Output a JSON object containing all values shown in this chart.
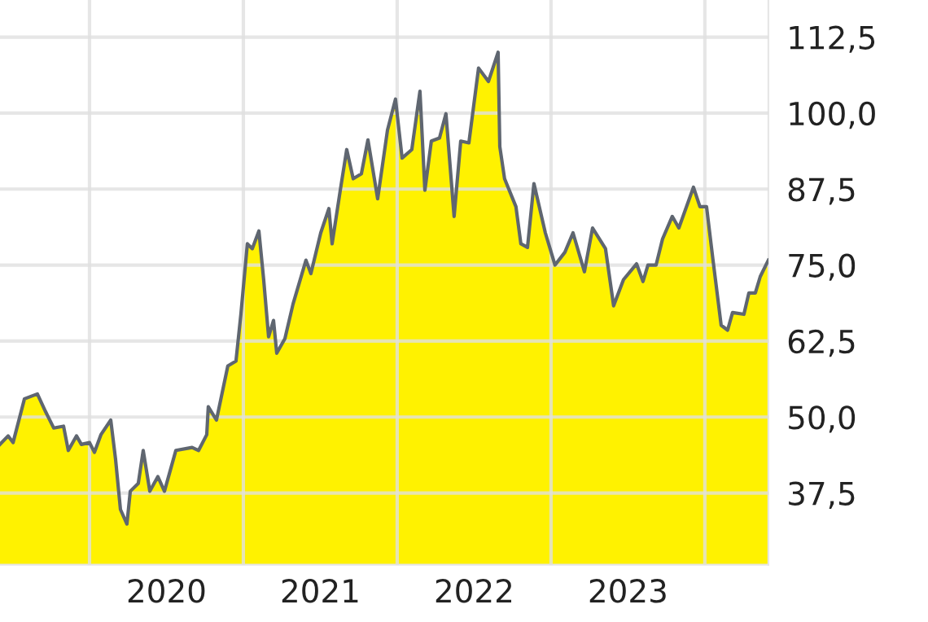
{
  "chart_data": {
    "type": "area",
    "x": [
      2019.418,
      2019.471,
      2019.503,
      2019.577,
      2019.661,
      2019.714,
      2019.767,
      2019.831,
      2019.862,
      2019.915,
      2019.947,
      2020.0,
      2020.032,
      2020.074,
      2020.138,
      2020.169,
      2020.201,
      2020.243,
      2020.265,
      2020.317,
      2020.349,
      2020.392,
      2020.444,
      2020.487,
      2020.561,
      2020.667,
      2020.709,
      2020.762,
      2020.772,
      2020.825,
      2020.899,
      2020.952,
      2020.984,
      2021.026,
      2021.058,
      2021.101,
      2021.132,
      2021.164,
      2021.196,
      2021.217,
      2021.27,
      2021.323,
      2021.407,
      2021.439,
      2021.503,
      2021.556,
      2021.577,
      2021.63,
      2021.672,
      2021.714,
      2021.767,
      2021.81,
      2021.873,
      2021.937,
      2021.989,
      2022.032,
      2022.095,
      2022.148,
      2022.18,
      2022.222,
      2022.275,
      2022.317,
      2022.37,
      2022.413,
      2022.466,
      2022.529,
      2022.593,
      2022.656,
      2022.667,
      2022.698,
      2022.772,
      2022.804,
      2022.847,
      2022.889,
      2022.963,
      2023.026,
      2023.09,
      2023.143,
      2023.217,
      2023.27,
      2023.354,
      2023.407,
      2023.471,
      2023.556,
      2023.598,
      2023.63,
      2023.683,
      2023.725,
      2023.788,
      2023.831,
      2023.926,
      2023.968,
      2024.011,
      2024.053,
      2024.106,
      2024.148,
      2024.18,
      2024.254,
      2024.286,
      2024.328,
      2024.36,
      2024.413
    ],
    "series": [
      {
        "color": "#fff200",
        "values": [
          45.5,
          46.9,
          45.8,
          53.0,
          53.8,
          50.9,
          48.2,
          48.5,
          44.5,
          46.9,
          45.5,
          45.8,
          44.2,
          47.1,
          49.5,
          43.1,
          34.8,
          32.4,
          37.8,
          39.1,
          44.5,
          37.8,
          40.2,
          37.8,
          44.5,
          45.0,
          44.5,
          47.1,
          51.7,
          49.5,
          58.4,
          59.2,
          66.9,
          78.5,
          77.7,
          80.6,
          72.6,
          63.2,
          65.9,
          60.5,
          62.9,
          68.6,
          75.8,
          73.6,
          80.3,
          84.3,
          78.5,
          87.3,
          94.0,
          89.2,
          90.0,
          95.6,
          85.9,
          97.2,
          102.3,
          92.6,
          94.0,
          103.6,
          87.3,
          95.4,
          95.9,
          99.9,
          83.0,
          95.4,
          95.1,
          107.4,
          105.2,
          110.0,
          94.5,
          89.2,
          84.6,
          78.5,
          77.9,
          88.4,
          80.3,
          75.0,
          77.1,
          80.3,
          73.9,
          81.1,
          77.7,
          68.3,
          72.6,
          75.2,
          72.3,
          75.0,
          75.0,
          79.3,
          83.0,
          81.1,
          87.8,
          84.6,
          84.6,
          75.8,
          65.1,
          64.3,
          67.2,
          66.9,
          70.4,
          70.4,
          73.1,
          75.8
        ]
      }
    ],
    "xlim": [
      2019.418,
      2024.413
    ],
    "xticks": [
      {
        "value": 2020,
        "label": null
      },
      {
        "value": 2020.5,
        "label": "2020"
      },
      {
        "value": 2021,
        "label": null
      },
      {
        "value": 2021.5,
        "label": "2021"
      },
      {
        "value": 2022,
        "label": null
      },
      {
        "value": 2022.5,
        "label": "2022"
      },
      {
        "value": 2023,
        "label": null
      },
      {
        "value": 2023.5,
        "label": "2023"
      },
      {
        "value": 2024,
        "label": null
      }
    ],
    "ylim": [
      25.7,
      118.6
    ],
    "yticks": [
      {
        "value": 37.5,
        "label": "37,5"
      },
      {
        "value": 50,
        "label": "50,0"
      },
      {
        "value": 62.5,
        "label": "62,5"
      },
      {
        "value": 75,
        "label": "75,0"
      },
      {
        "value": 87.5,
        "label": "87,5"
      },
      {
        "value": 100,
        "label": "100,0"
      },
      {
        "value": 112.5,
        "label": "112,5"
      }
    ],
    "grid": true,
    "legend": false
  }
}
